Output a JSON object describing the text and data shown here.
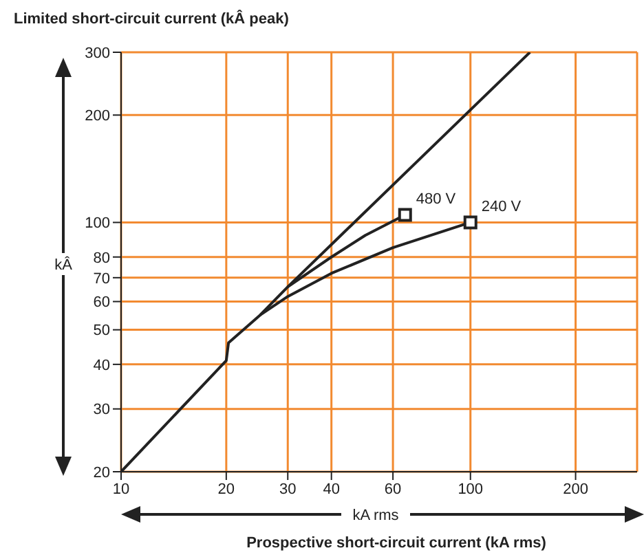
{
  "chart_data": {
    "type": "line",
    "ylabel": "Limited short-circuit current (kÂ peak)",
    "xlabel": "Prospective short-circuit current (kA rms)",
    "annotations": [
      "kÂ",
      "kA rms",
      {
        "text": "480 V",
        "x": 65,
        "y": 105
      },
      {
        "text": "240 V",
        "x": 100,
        "y": 100
      }
    ],
    "series": [
      {
        "color": "#222222",
        "x": [
          10,
          20,
          20.3,
          25,
          30,
          148
        ],
        "values": [
          20,
          41,
          46,
          55,
          66,
          300
        ]
      },
      {
        "color": "#222222",
        "x": [
          30,
          40,
          50,
          65
        ],
        "values": [
          66,
          80,
          92,
          105
        ]
      },
      {
        "color": "#222222",
        "x": [
          25,
          30,
          40,
          60,
          100
        ],
        "values": [
          55,
          62,
          72,
          85,
          100
        ]
      },
      {
        "type": "scatter",
        "color": "#222222",
        "marker": "square",
        "x": [
          65,
          100
        ],
        "values": [
          105,
          100
        ]
      }
    ],
    "log": "xy",
    "xlim": [
      10,
      300
    ],
    "ylim": [
      20,
      300
    ],
    "xticks": [
      10,
      20,
      30,
      40,
      60,
      100,
      200
    ],
    "yticks": [
      20,
      30,
      40,
      50,
      60,
      70,
      80,
      100,
      200,
      300
    ],
    "grid": true
  }
}
